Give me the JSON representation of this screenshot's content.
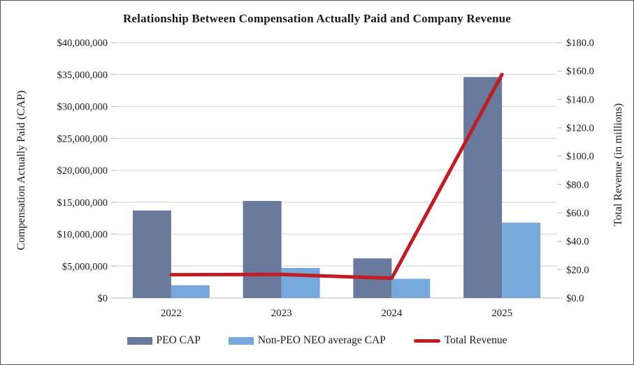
{
  "chart_data": {
    "type": "bar",
    "subtype": "combo-bar-line-dual-axis",
    "title": "Relationship Between Compensation Actually Paid and Company Revenue",
    "categories": [
      "2022",
      "2023",
      "2024",
      "2025"
    ],
    "series": [
      {
        "name": "PEO CAP",
        "render": "bar",
        "axis": "left",
        "color": "#68799B",
        "values": [
          13700000,
          15200000,
          6200000,
          34600000
        ]
      },
      {
        "name": "Non-PEO NEO average CAP",
        "render": "bar",
        "axis": "left",
        "color": "#77A8DC",
        "values": [
          2000000,
          4700000,
          3000000,
          11800000
        ]
      },
      {
        "name": "Total Revenue",
        "render": "line",
        "axis": "right",
        "color": "#BF1D23",
        "values": [
          16.4,
          16.6,
          13.9,
          157.5
        ]
      }
    ],
    "axes": {
      "left": {
        "label": "Compensation Actually Paid (CAP)",
        "min": 0,
        "max": 40000000,
        "step": 5000000,
        "tick_labels": [
          "$0",
          "$5,000,000",
          "$10,000,000",
          "$15,000,000",
          "$20,000,000",
          "$25,000,000",
          "$30,000,000",
          "$35,000,000",
          "$40,000,000"
        ]
      },
      "right": {
        "label": "Total Revenue (in millions)",
        "min": 0,
        "max": 180,
        "step": 20,
        "tick_labels": [
          "$0.0",
          "$20.0",
          "$40.0",
          "$60.0",
          "$80.0",
          "$100.0",
          "$120.0",
          "$140.0",
          "$160.0",
          "$180.0"
        ]
      }
    },
    "grid": true,
    "gridline_color": "#D9D9D9",
    "axis_line_color": "#C6C6C6",
    "legend_position": "bottom"
  }
}
